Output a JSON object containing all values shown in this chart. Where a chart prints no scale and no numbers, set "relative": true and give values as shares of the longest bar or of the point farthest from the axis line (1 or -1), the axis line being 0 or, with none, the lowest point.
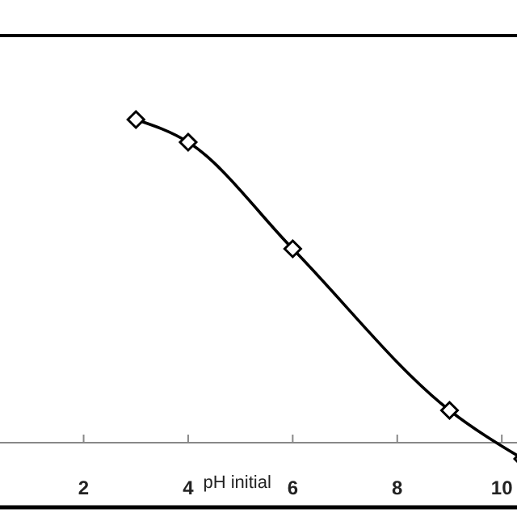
{
  "chart_data": {
    "type": "line",
    "xlabel": "pH initial",
    "relative": true,
    "x": [
      3,
      4,
      6,
      9,
      10.4
    ],
    "series": [
      {
        "color": "#000000",
        "values": [
          1,
          0.93,
          0.6,
          0.1,
          -0.05
        ]
      }
    ],
    "xlim": [
      0.4,
      10.6
    ],
    "xticks": [
      2,
      4,
      6,
      8,
      10
    ],
    "marker": "diamond",
    "line_style": "solid",
    "grid": false
  }
}
